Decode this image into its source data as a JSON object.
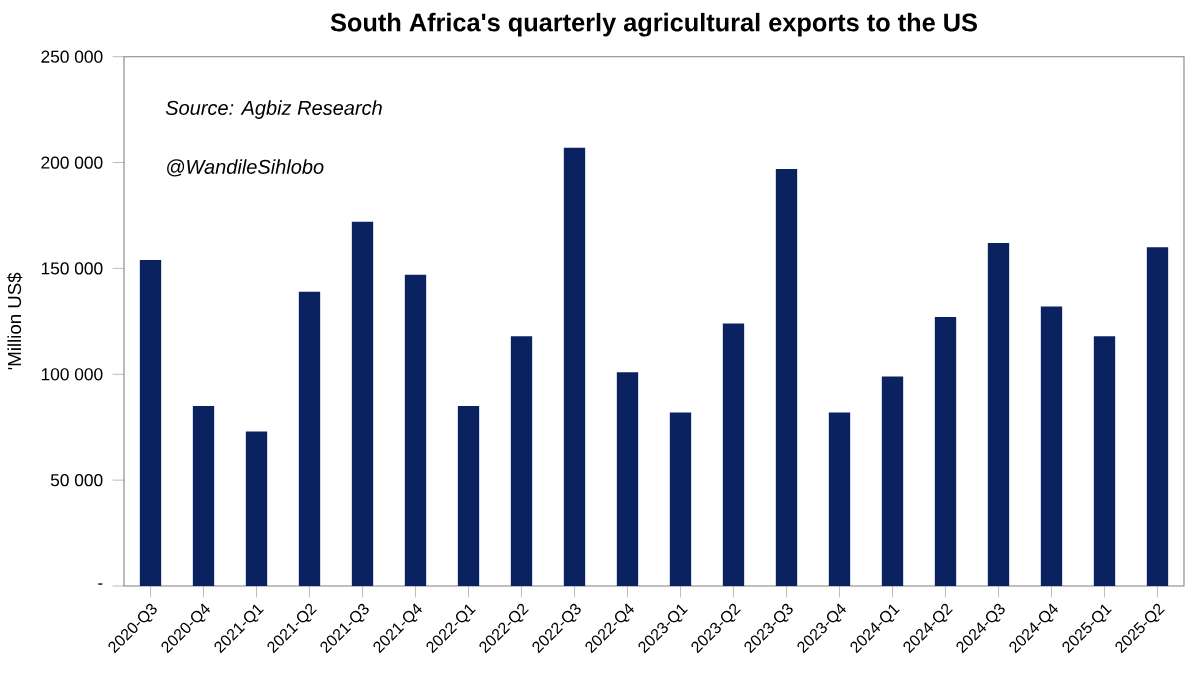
{
  "chart_data": {
    "type": "bar",
    "title": "South Africa's quarterly agricultural exports to the US",
    "ylabel": "'Million US$",
    "annotations": [
      "Source: Agbiz Research",
      "@WandileSihlobo"
    ],
    "categories": [
      "2020-Q3",
      "2020-Q4",
      "2021-Q1",
      "2021-Q2",
      "2021-Q3",
      "2021-Q4",
      "2022-Q1",
      "2022-Q2",
      "2022-Q3",
      "2022-Q4",
      "2023-Q1",
      "2023-Q2",
      "2023-Q3",
      "2023-Q4",
      "2024-Q1",
      "2024-Q2",
      "2024-Q3",
      "2024-Q4",
      "2025-Q1",
      "2025-Q2"
    ],
    "values": [
      154000,
      85000,
      73000,
      139000,
      172000,
      147000,
      85000,
      118000,
      207000,
      101000,
      82000,
      124000,
      197000,
      82000,
      99000,
      127000,
      162000,
      132000,
      118000,
      160000
    ],
    "color": "#0a2260",
    "ylim": [
      0,
      250000
    ],
    "yticks": [
      {
        "value": 0,
        "label": "-"
      },
      {
        "value": 50000,
        "label": "50 000"
      },
      {
        "value": 100000,
        "label": "100 000"
      },
      {
        "value": 150000,
        "label": "150 000"
      },
      {
        "value": 200000,
        "label": "200 000"
      },
      {
        "value": 250000,
        "label": "250 000"
      }
    ],
    "grid": false
  }
}
